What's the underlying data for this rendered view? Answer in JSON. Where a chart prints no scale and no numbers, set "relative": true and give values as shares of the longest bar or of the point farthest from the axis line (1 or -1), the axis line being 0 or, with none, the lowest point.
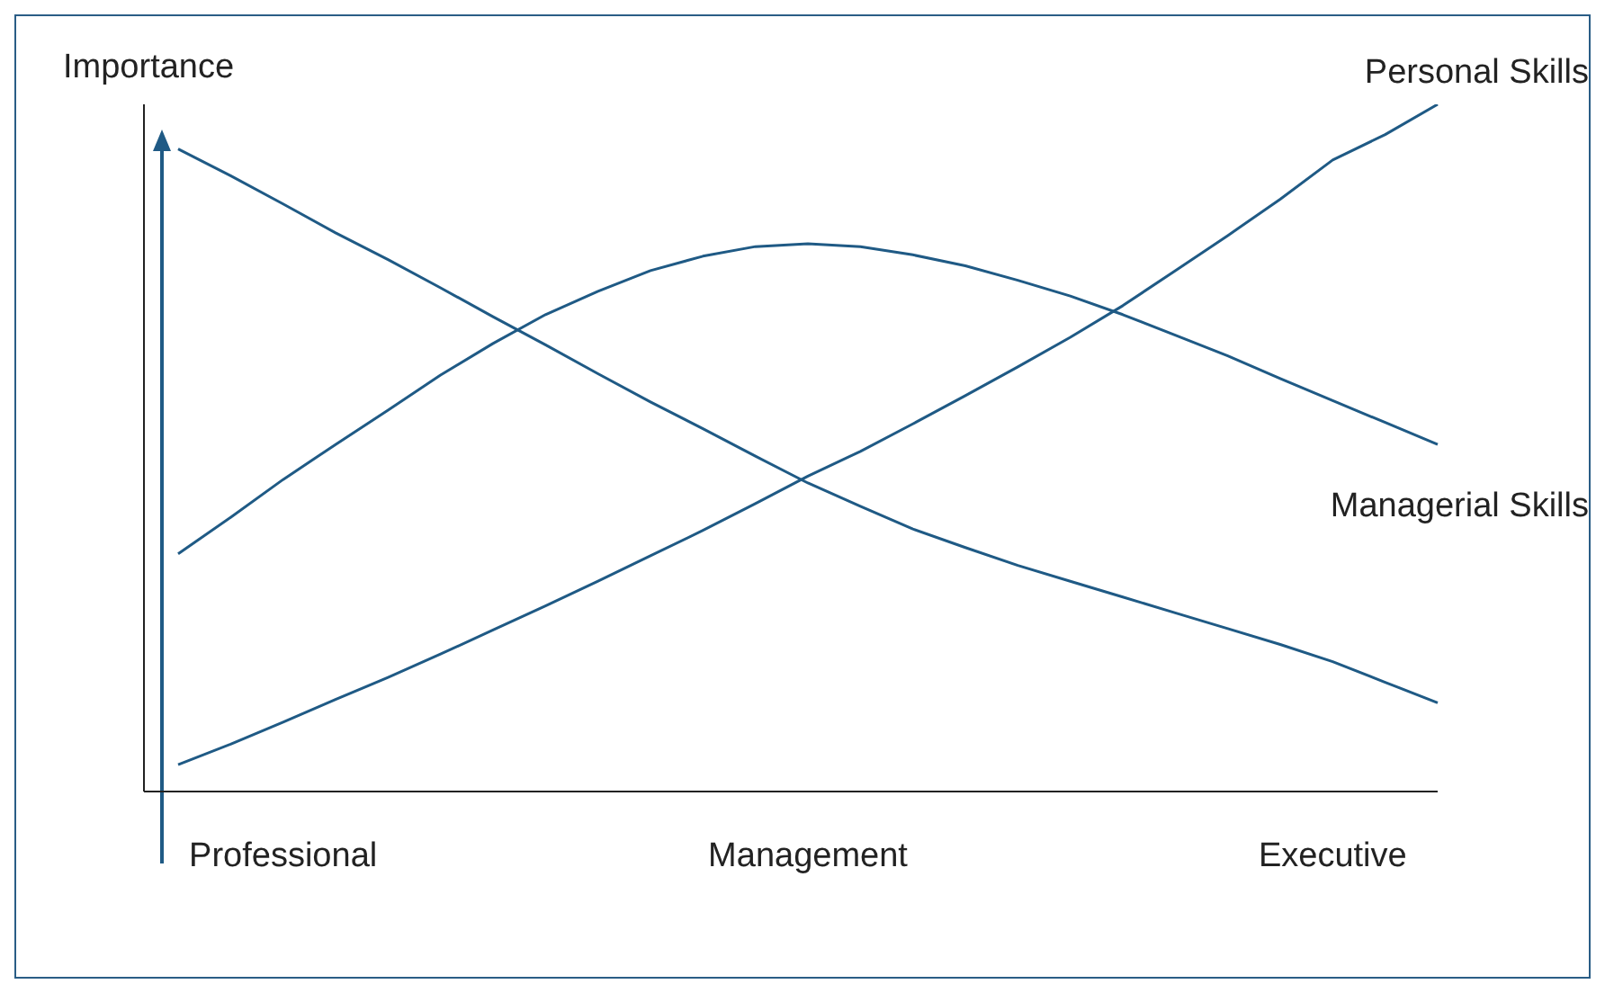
{
  "chart_data": {
    "type": "line",
    "relative": true,
    "ylabel": "Importance",
    "categories": [
      null,
      null,
      "Professional",
      null,
      null,
      null,
      null,
      null,
      null,
      null,
      null,
      null,
      "Management",
      null,
      null,
      null,
      null,
      null,
      null,
      null,
      null,
      null,
      "Executive",
      null,
      null
    ],
    "series": [
      {
        "color": "#1f5a85",
        "values": [
          0.935,
          0.896,
          0.855,
          0.813,
          0.774,
          0.733,
          0.691,
          0.65,
          0.608,
          0.567,
          0.528,
          0.488,
          0.449,
          0.415,
          0.382,
          0.355,
          0.329,
          0.306,
          0.283,
          0.26,
          0.237,
          0.214,
          0.189,
          0.159,
          0.129
        ]
      },
      {
        "name": "Personal Skills",
        "color": "#1f5a85",
        "values": [
          0.039,
          0.069,
          0.101,
          0.134,
          0.166,
          0.2,
          0.235,
          0.27,
          0.306,
          0.343,
          0.38,
          0.419,
          0.459,
          0.495,
          0.535,
          0.576,
          0.618,
          0.661,
          0.707,
          0.758,
          0.809,
          0.862,
          0.919,
          0.956,
          1
        ]
      },
      {
        "name": "Managerial Skills",
        "color": "#1f5a85",
        "values": [
          0.346,
          0.399,
          0.454,
          0.505,
          0.555,
          0.606,
          0.652,
          0.694,
          0.728,
          0.758,
          0.779,
          0.793,
          0.797,
          0.793,
          0.781,
          0.765,
          0.744,
          0.721,
          0.694,
          0.664,
          0.634,
          0.601,
          0.569,
          0.537,
          0.505
        ]
      }
    ],
    "grid": false,
    "line_style": "solid"
  }
}
